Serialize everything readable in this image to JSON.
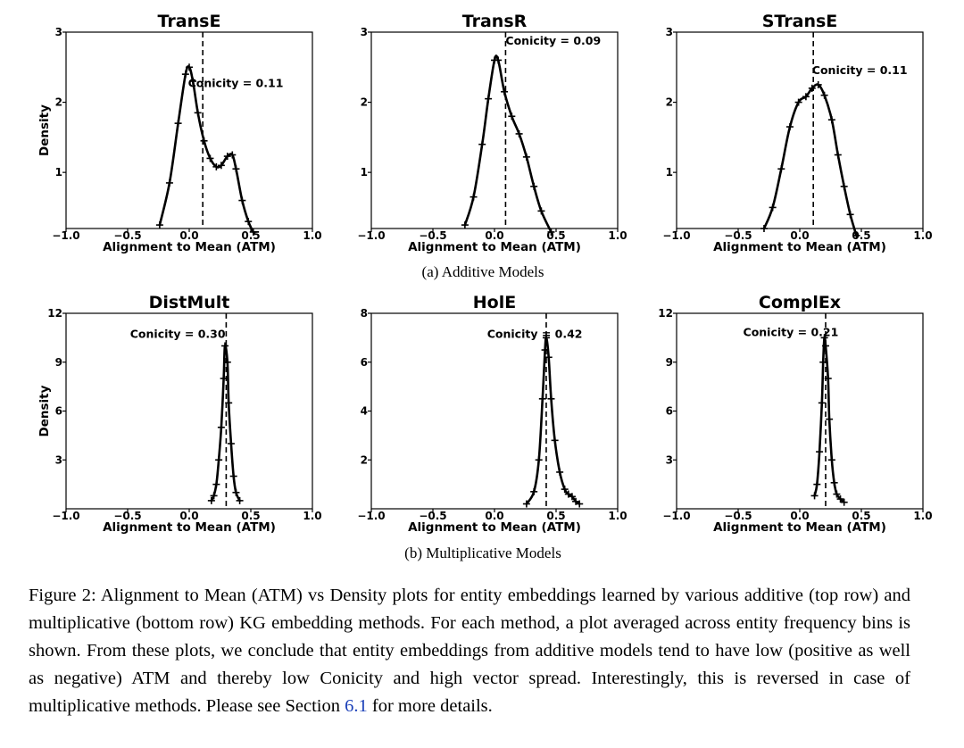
{
  "rows": [
    {
      "label": "(a) Additive Models"
    },
    {
      "label": "(b) Multiplicative Models"
    }
  ],
  "caption": {
    "before": "Figure 2: Alignment to Mean (ATM) vs Density plots for entity embeddings learned by various additive (top row) and multiplicative (bottom row) KG embedding methods. For each method, a plot averaged across entity frequency bins is shown. From these plots, we conclude that entity embeddings from additive models tend to have low (positive as well as negative) ATM and thereby low Conicity and high vector spread. Interestingly, this is reversed in case of multiplicative methods. Please see Section ",
    "ref": "6.1",
    "after": " for more details."
  },
  "chart_data": [
    {
      "type": "line",
      "title": "TransE",
      "xlabel": "Alignment to Mean (ATM)",
      "ylabel": "Density",
      "xlim": [
        -1.0,
        1.0
      ],
      "ylim": [
        0.2,
        3.0
      ],
      "xticks": [
        "−1.0",
        "−0.5",
        "0.0",
        "0.5",
        "1.0"
      ],
      "xtick_values": [
        -1.0,
        -0.5,
        0.0,
        0.5,
        1.0
      ],
      "yticks": [
        "1",
        "2",
        "3"
      ],
      "ytick_values": [
        1,
        2,
        3
      ],
      "conicity": 0.11,
      "annotation": "Conicity = 0.11",
      "x": [
        -0.24,
        -0.16,
        -0.09,
        -0.03,
        0.0,
        0.03,
        0.07,
        0.12,
        0.17,
        0.22,
        0.26,
        0.31,
        0.35,
        0.38,
        0.43,
        0.48,
        0.52
      ],
      "y": [
        0.25,
        0.85,
        1.7,
        2.4,
        2.5,
        2.3,
        1.85,
        1.45,
        1.2,
        1.08,
        1.1,
        1.23,
        1.25,
        1.05,
        0.6,
        0.3,
        0.15
      ]
    },
    {
      "type": "line",
      "title": "TransR",
      "xlabel": "Alignment to Mean (ATM)",
      "ylabel": "",
      "xlim": [
        -1.0,
        1.0
      ],
      "ylim": [
        0.2,
        3.0
      ],
      "xticks": [
        "−1.0",
        "−0.5",
        "0.0",
        "0.5",
        "1.0"
      ],
      "xtick_values": [
        -1.0,
        -0.5,
        0.0,
        0.5,
        1.0
      ],
      "yticks": [
        "1",
        "2",
        "3"
      ],
      "ytick_values": [
        1,
        2,
        3
      ],
      "conicity": 0.09,
      "annotation": "Conicity = 0.09",
      "x": [
        -0.24,
        -0.17,
        -0.1,
        -0.05,
        0.0,
        0.03,
        0.08,
        0.14,
        0.2,
        0.26,
        0.32,
        0.38,
        0.46
      ],
      "y": [
        0.25,
        0.65,
        1.4,
        2.05,
        2.6,
        2.6,
        2.15,
        1.8,
        1.55,
        1.22,
        0.8,
        0.45,
        0.15
      ]
    },
    {
      "type": "line",
      "title": "STransE",
      "xlabel": "Alignment to Mean (ATM)",
      "ylabel": "",
      "xlim": [
        -1.0,
        1.0
      ],
      "ylim": [
        0.2,
        3.0
      ],
      "xticks": [
        "−1.0",
        "−0.5",
        "0.0",
        "0.5",
        "1.0"
      ],
      "xtick_values": [
        -1.0,
        -0.5,
        0.0,
        0.5,
        1.0
      ],
      "yticks": [
        "1",
        "2",
        "3"
      ],
      "ytick_values": [
        1,
        2,
        3
      ],
      "conicity": 0.11,
      "annotation": "Conicity = 0.11",
      "x": [
        -0.29,
        -0.22,
        -0.15,
        -0.08,
        -0.01,
        0.05,
        0.1,
        0.15,
        0.2,
        0.26,
        0.31,
        0.36,
        0.41,
        0.46
      ],
      "y": [
        0.2,
        0.5,
        1.05,
        1.65,
        2.0,
        2.08,
        2.2,
        2.25,
        2.1,
        1.75,
        1.25,
        0.8,
        0.4,
        0.1
      ]
    },
    {
      "type": "line",
      "title": "DistMult",
      "xlabel": "Alignment to Mean (ATM)",
      "ylabel": "Density",
      "xlim": [
        -1.0,
        1.0
      ],
      "ylim": [
        0.0,
        12.0
      ],
      "xticks": [
        "−1.0",
        "−0.5",
        "0.0",
        "0.5",
        "1.0"
      ],
      "xtick_values": [
        -1.0,
        -0.5,
        0.0,
        0.5,
        1.0
      ],
      "yticks": [
        "3",
        "6",
        "9",
        "12"
      ],
      "ytick_values": [
        3,
        6,
        9,
        12
      ],
      "conicity": 0.3,
      "annotation": "Conicity = 0.30",
      "x": [
        0.18,
        0.2,
        0.22,
        0.24,
        0.26,
        0.28,
        0.29,
        0.31,
        0.32,
        0.34,
        0.36,
        0.38,
        0.41
      ],
      "y": [
        0.5,
        0.8,
        1.5,
        3.0,
        5.0,
        8.0,
        10.0,
        9.0,
        6.5,
        4.0,
        2.0,
        1.0,
        0.5
      ]
    },
    {
      "type": "line",
      "title": "HolE",
      "xlabel": "Alignment to Mean (ATM)",
      "ylabel": "",
      "xlim": [
        -1.0,
        1.0
      ],
      "ylim": [
        0.0,
        8.0
      ],
      "xticks": [
        "−1.0",
        "−0.5",
        "0.0",
        "0.5",
        "1.0"
      ],
      "xtick_values": [
        -1.0,
        -0.5,
        0.0,
        0.5,
        1.0
      ],
      "yticks": [
        "2",
        "4",
        "6",
        "8"
      ],
      "ytick_values": [
        2,
        4,
        6,
        8
      ],
      "conicity": 0.42,
      "annotation": "Conicity = 0.42",
      "x": [
        0.26,
        0.32,
        0.36,
        0.39,
        0.41,
        0.42,
        0.44,
        0.46,
        0.49,
        0.53,
        0.57,
        0.6,
        0.63,
        0.66,
        0.69
      ],
      "y": [
        0.2,
        0.7,
        2.0,
        4.5,
        6.5,
        7.0,
        6.2,
        4.5,
        2.8,
        1.5,
        0.8,
        0.6,
        0.5,
        0.3,
        0.2
      ]
    },
    {
      "type": "line",
      "title": "ComplEx",
      "xlabel": "Alignment to Mean (ATM)",
      "ylabel": "",
      "xlim": [
        -1.0,
        1.0
      ],
      "ylim": [
        0.0,
        12.0
      ],
      "xticks": [
        "−1.0",
        "−0.5",
        "0.0",
        "0.5",
        "1.0"
      ],
      "xtick_values": [
        -1.0,
        -0.5,
        0.0,
        0.5,
        1.0
      ],
      "yticks": [
        "3",
        "6",
        "9",
        "12"
      ],
      "ytick_values": [
        3,
        6,
        9,
        12
      ],
      "conicity": 0.21,
      "annotation": "Conicity = 0.21",
      "x": [
        0.12,
        0.14,
        0.16,
        0.18,
        0.19,
        0.2,
        0.21,
        0.23,
        0.24,
        0.26,
        0.28,
        0.3,
        0.33,
        0.36
      ],
      "y": [
        0.8,
        1.5,
        3.5,
        6.5,
        9.0,
        10.5,
        10.0,
        8.0,
        5.5,
        3.0,
        1.6,
        0.9,
        0.6,
        0.4
      ]
    }
  ]
}
